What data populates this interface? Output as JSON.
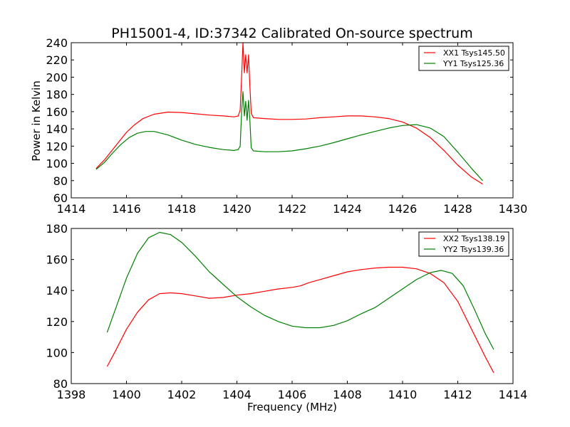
{
  "chart_data": [
    {
      "type": "line",
      "title": "PH15001-4, ID:37342 Calibrated On-source spectrum",
      "xlabel": "",
      "ylabel": "Power in Kelvin",
      "xlim": [
        1414,
        1430
      ],
      "ylim": [
        60,
        240
      ],
      "xticks": [
        "1414",
        "1416",
        "1418",
        "1420",
        "1422",
        "1424",
        "1426",
        "1428",
        "1430"
      ],
      "yticks": [
        "60",
        "80",
        "100",
        "120",
        "140",
        "160",
        "180",
        "200",
        "220",
        "240"
      ],
      "grid": false,
      "legend_position": "top-right",
      "series": [
        {
          "name": "XX1 Tsys145.50",
          "color": "#ff0000",
          "points": [
            [
              1414.9,
              94
            ],
            [
              1415.2,
              104
            ],
            [
              1415.5,
              116
            ],
            [
              1415.8,
              128
            ],
            [
              1416.0,
              136
            ],
            [
              1416.3,
              145
            ],
            [
              1416.6,
              152
            ],
            [
              1417.0,
              157
            ],
            [
              1417.5,
              159.5
            ],
            [
              1418.0,
              159
            ],
            [
              1418.5,
              157.5
            ],
            [
              1419.0,
              156
            ],
            [
              1419.5,
              155
            ],
            [
              1419.9,
              154
            ],
            [
              1420.05,
              155
            ],
            [
              1420.12,
              162
            ],
            [
              1420.17,
              200
            ],
            [
              1420.22,
              240
            ],
            [
              1420.27,
              205
            ],
            [
              1420.32,
              226
            ],
            [
              1420.37,
              205
            ],
            [
              1420.42,
              226
            ],
            [
              1420.47,
              190
            ],
            [
              1420.52,
              158
            ],
            [
              1420.6,
              153
            ],
            [
              1421.0,
              152
            ],
            [
              1421.5,
              151
            ],
            [
              1422.0,
              151
            ],
            [
              1422.5,
              151.5
            ],
            [
              1423.0,
              153
            ],
            [
              1423.5,
              154
            ],
            [
              1424.0,
              155
            ],
            [
              1424.5,
              155
            ],
            [
              1425.0,
              154
            ],
            [
              1425.5,
              152
            ],
            [
              1426.0,
              148
            ],
            [
              1426.5,
              141
            ],
            [
              1427.0,
              130
            ],
            [
              1427.5,
              115
            ],
            [
              1428.0,
              98
            ],
            [
              1428.5,
              84
            ],
            [
              1428.9,
              76
            ]
          ]
        },
        {
          "name": "YY1 Tsys125.36",
          "color": "#008000",
          "points": [
            [
              1414.9,
              93
            ],
            [
              1415.2,
              101
            ],
            [
              1415.5,
              112
            ],
            [
              1415.8,
              122
            ],
            [
              1416.1,
              130
            ],
            [
              1416.4,
              135
            ],
            [
              1416.7,
              137
            ],
            [
              1417.0,
              137
            ],
            [
              1417.5,
              133
            ],
            [
              1418.0,
              127
            ],
            [
              1418.5,
              122
            ],
            [
              1419.0,
              118.5
            ],
            [
              1419.5,
              116
            ],
            [
              1419.9,
              115
            ],
            [
              1420.05,
              116
            ],
            [
              1420.12,
              120
            ],
            [
              1420.17,
              160
            ],
            [
              1420.22,
              183
            ],
            [
              1420.27,
              155
            ],
            [
              1420.32,
              172
            ],
            [
              1420.37,
              150
            ],
            [
              1420.42,
              173
            ],
            [
              1420.47,
              150
            ],
            [
              1420.52,
              118
            ],
            [
              1420.6,
              114.5
            ],
            [
              1421.0,
              113.5
            ],
            [
              1421.5,
              113.5
            ],
            [
              1422.0,
              114.5
            ],
            [
              1422.5,
              117
            ],
            [
              1423.0,
              120
            ],
            [
              1423.5,
              124
            ],
            [
              1424.0,
              128.5
            ],
            [
              1424.5,
              133
            ],
            [
              1425.0,
              137
            ],
            [
              1425.5,
              141
            ],
            [
              1426.0,
              144
            ],
            [
              1426.5,
              145
            ],
            [
              1427.0,
              141
            ],
            [
              1427.5,
              131
            ],
            [
              1428.0,
              113
            ],
            [
              1428.5,
              94
            ],
            [
              1428.9,
              80
            ]
          ]
        }
      ]
    },
    {
      "type": "line",
      "title": "",
      "xlabel": "Frequency (MHz)",
      "ylabel": "",
      "xlim": [
        1398,
        1414
      ],
      "ylim": [
        80,
        180
      ],
      "xticks": [
        "1398",
        "1400",
        "1402",
        "1404",
        "1406",
        "1408",
        "1410",
        "1412",
        "1414"
      ],
      "yticks": [
        "80",
        "100",
        "120",
        "140",
        "160",
        "180"
      ],
      "grid": false,
      "legend_position": "top-right",
      "series": [
        {
          "name": "XX2 Tsys138.19",
          "color": "#ff0000",
          "points": [
            [
              1399.3,
              91
            ],
            [
              1399.6,
              101
            ],
            [
              1400.0,
              115
            ],
            [
              1400.4,
              126
            ],
            [
              1400.8,
              134
            ],
            [
              1401.2,
              138
            ],
            [
              1401.6,
              138.5
            ],
            [
              1402.0,
              138
            ],
            [
              1402.5,
              136.5
            ],
            [
              1403.0,
              135
            ],
            [
              1403.5,
              135.5
            ],
            [
              1404.0,
              137
            ],
            [
              1404.5,
              138
            ],
            [
              1405.0,
              139.5
            ],
            [
              1405.5,
              141
            ],
            [
              1406.0,
              142
            ],
            [
              1406.3,
              143
            ],
            [
              1406.6,
              145
            ],
            [
              1407.0,
              147
            ],
            [
              1407.5,
              149.5
            ],
            [
              1408.0,
              152
            ],
            [
              1408.5,
              153.5
            ],
            [
              1409.0,
              154.5
            ],
            [
              1409.5,
              155
            ],
            [
              1410.0,
              155
            ],
            [
              1410.5,
              154
            ],
            [
              1411.0,
              151
            ],
            [
              1411.5,
              145
            ],
            [
              1412.0,
              133
            ],
            [
              1412.5,
              115
            ],
            [
              1413.0,
              97
            ],
            [
              1413.3,
              87
            ]
          ]
        },
        {
          "name": "YY2 Tsys139.36",
          "color": "#008000",
          "points": [
            [
              1399.3,
              113
            ],
            [
              1399.6,
              128
            ],
            [
              1400.0,
              148
            ],
            [
              1400.4,
              164
            ],
            [
              1400.8,
              174
            ],
            [
              1401.2,
              177.5
            ],
            [
              1401.6,
              176
            ],
            [
              1402.0,
              171
            ],
            [
              1402.5,
              162
            ],
            [
              1403.0,
              152
            ],
            [
              1403.5,
              144
            ],
            [
              1404.0,
              136
            ],
            [
              1404.5,
              129.5
            ],
            [
              1405.0,
              124
            ],
            [
              1405.5,
              120
            ],
            [
              1406.0,
              117
            ],
            [
              1406.5,
              116
            ],
            [
              1407.0,
              116
            ],
            [
              1407.5,
              117.5
            ],
            [
              1408.0,
              120.5
            ],
            [
              1408.5,
              125
            ],
            [
              1409.0,
              129
            ],
            [
              1409.5,
              135
            ],
            [
              1410.0,
              141
            ],
            [
              1410.5,
              147
            ],
            [
              1411.0,
              151.5
            ],
            [
              1411.4,
              153
            ],
            [
              1411.8,
              151
            ],
            [
              1412.2,
              143
            ],
            [
              1412.6,
              128
            ],
            [
              1413.0,
              112
            ],
            [
              1413.3,
              102
            ]
          ]
        }
      ]
    }
  ]
}
